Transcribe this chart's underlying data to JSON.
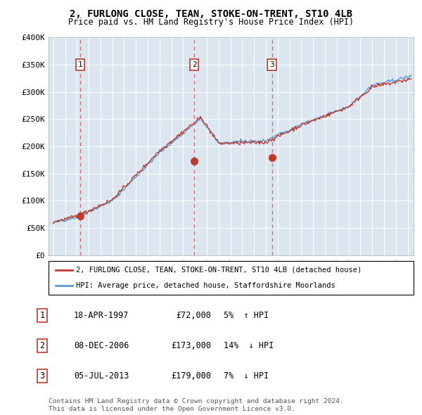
{
  "title1": "2, FURLONG CLOSE, TEAN, STOKE-ON-TRENT, ST10 4LB",
  "title2": "Price paid vs. HM Land Registry's House Price Index (HPI)",
  "ylim": [
    0,
    400000
  ],
  "yticks": [
    0,
    50000,
    100000,
    150000,
    200000,
    250000,
    300000,
    350000,
    400000
  ],
  "ytick_labels": [
    "£0",
    "£50K",
    "£100K",
    "£150K",
    "£200K",
    "£250K",
    "£300K",
    "£350K",
    "£400K"
  ],
  "xlim_start": 1994.6,
  "xlim_end": 2025.5,
  "transactions": [
    {
      "num": 1,
      "date_str": "18-APR-1997",
      "year": 1997.29,
      "price": 72000,
      "pct": "5%",
      "dir": "↑"
    },
    {
      "num": 2,
      "date_str": "08-DEC-2006",
      "year": 2006.93,
      "price": 173000,
      "pct": "14%",
      "dir": "↓"
    },
    {
      "num": 3,
      "date_str": "05-JUL-2013",
      "year": 2013.51,
      "price": 179000,
      "pct": "7%",
      "dir": "↓"
    }
  ],
  "legend_line1": "2, FURLONG CLOSE, TEAN, STOKE-ON-TRENT, ST10 4LB (detached house)",
  "legend_line2": "HPI: Average price, detached house, Staffordshire Moorlands",
  "footer1": "Contains HM Land Registry data © Crown copyright and database right 2024.",
  "footer2": "This data is licensed under the Open Government Licence v3.0.",
  "bg_color": "#dce6f1",
  "red_line_color": "#c0392b",
  "blue_line_color": "#5b9bd5",
  "grid_color": "#ffffff",
  "transaction_box_color": "#c0392b",
  "dashed_line_color": "#e05555"
}
